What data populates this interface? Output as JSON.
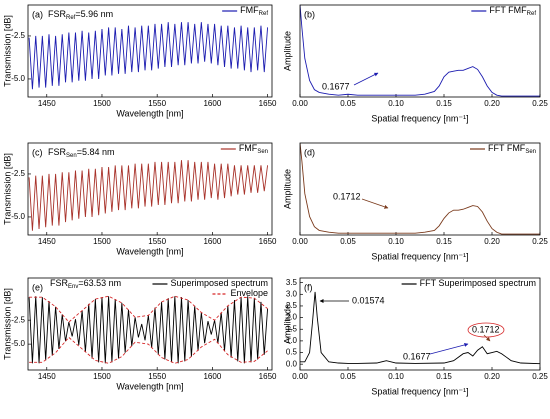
{
  "chart_data": [
    {
      "type": "line",
      "panel": "(a)",
      "label": {
        "main": "FSR",
        "sub": "Ref",
        "rest": "=5.96 nm"
      },
      "xlabel": "Wavelength [nm]",
      "ylabel": "Transmission [dB]",
      "legend": "upper right",
      "x": [
        1434,
        1437,
        1440,
        1443,
        1446,
        1449,
        1452,
        1455,
        1458,
        1461,
        1464,
        1467,
        1470,
        1473,
        1476,
        1479,
        1482,
        1485,
        1488,
        1491,
        1494,
        1497,
        1500,
        1503,
        1506,
        1509,
        1512,
        1515,
        1518,
        1521,
        1524,
        1527,
        1530,
        1533,
        1536,
        1539,
        1542,
        1545,
        1548,
        1551,
        1554,
        1557,
        1560,
        1563,
        1566,
        1569,
        1572,
        1575,
        1578,
        1581,
        1584,
        1587,
        1590,
        1593,
        1596,
        1599,
        1602,
        1605,
        1608,
        1611,
        1614,
        1617,
        1620,
        1623,
        1626,
        1629,
        1632,
        1635,
        1638,
        1641,
        1644,
        1647,
        1650
      ],
      "series": [
        {
          "name": "FMF",
          "name_sub": "Ref",
          "color": "#1c1cb0",
          "values": [
            -2.6,
            -5.6,
            -2.5,
            -5.5,
            -2.5,
            -5.5,
            -2.4,
            -5.4,
            -2.5,
            -5.4,
            -2.4,
            -5.2,
            -2.3,
            -5.2,
            -2.3,
            -5.1,
            -2.2,
            -5.1,
            -2.3,
            -5.0,
            -2.2,
            -5.0,
            -2.1,
            -4.8,
            -2.0,
            -4.8,
            -2.0,
            -4.7,
            -2.1,
            -4.7,
            -1.9,
            -4.6,
            -2.0,
            -4.6,
            -1.9,
            -4.5,
            -1.9,
            -4.5,
            -1.8,
            -4.4,
            -1.8,
            -4.3,
            -1.7,
            -4.3,
            -1.8,
            -4.2,
            -1.7,
            -4.2,
            -1.7,
            -4.1,
            -1.8,
            -4.1,
            -1.7,
            -4.0,
            -1.8,
            -4.1,
            -1.8,
            -4.2,
            -1.9,
            -4.3,
            -1.9,
            -4.4,
            -2.0,
            -4.4,
            -1.9,
            -4.5,
            -2.0,
            -4.6,
            -2.0,
            -4.5,
            -1.9,
            -4.6,
            -2.0
          ]
        }
      ],
      "xlim": [
        1433,
        1654
      ],
      "ylim": [
        -6.05,
        -0.7
      ],
      "xticks": [
        1450,
        1500,
        1550,
        1600,
        1650
      ],
      "yticks": [
        -2.5,
        {
          "value": -5,
          "label": "-5.0"
        }
      ],
      "annotations": []
    },
    {
      "type": "line",
      "panel": "(b)",
      "xlabel": "Spatial frequency [nm⁻¹]",
      "ylabel": "Amplitude",
      "legend": "upper right",
      "x": [
        0,
        0.002,
        0.005,
        0.01,
        0.015,
        0.02,
        0.03,
        0.04,
        0.05,
        0.06,
        0.08,
        0.1,
        0.12,
        0.13,
        0.14,
        0.145,
        0.15,
        0.155,
        0.16,
        0.165,
        0.17,
        0.175,
        0.18,
        0.185,
        0.19,
        0.195,
        0.2,
        0.205,
        0.21,
        0.22,
        0.25
      ],
      "series": [
        {
          "name": "FFT FMF",
          "name_sub": "Ref",
          "color": "#1c1cb0",
          "values": [
            1.0,
            0.75,
            0.42,
            0.18,
            0.08,
            0.05,
            0.03,
            0.02,
            0.03,
            0.02,
            0.02,
            0.02,
            0.02,
            0.03,
            0.06,
            0.12,
            0.22,
            0.27,
            0.28,
            0.29,
            0.29,
            0.31,
            0.33,
            0.3,
            0.22,
            0.12,
            0.05,
            0.02,
            0.01,
            0.01,
            0.01
          ]
        }
      ],
      "xlim": [
        0,
        0.25
      ],
      "ylim": [
        0,
        1
      ],
      "xticks": [
        {
          "value": 0,
          "label": "0.00"
        },
        0.05,
        {
          "value": 0.1,
          "label": "0.10"
        },
        0.15,
        {
          "value": 0.2,
          "label": "0.20"
        },
        0.25
      ],
      "yticks": [],
      "annotations": [
        {
          "text": "0.1677",
          "color": "#1c1cb0"
        }
      ]
    },
    {
      "type": "line",
      "panel": "(c)",
      "label": {
        "main": "FSR",
        "sub": "Sen",
        "rest": "=5.84 nm"
      },
      "xlabel": "Wavelength [nm]",
      "ylabel": "Transmission [dB]",
      "legend": "upper right",
      "x": [
        1434,
        1437,
        1440,
        1443,
        1446,
        1449,
        1452,
        1455,
        1458,
        1461,
        1464,
        1467,
        1470,
        1473,
        1476,
        1479,
        1482,
        1485,
        1488,
        1491,
        1494,
        1497,
        1500,
        1503,
        1506,
        1509,
        1512,
        1515,
        1518,
        1521,
        1524,
        1527,
        1530,
        1533,
        1536,
        1539,
        1542,
        1545,
        1548,
        1551,
        1554,
        1557,
        1560,
        1563,
        1566,
        1569,
        1572,
        1575,
        1578,
        1581,
        1584,
        1587,
        1590,
        1593,
        1596,
        1599,
        1602,
        1605,
        1608,
        1611,
        1614,
        1617,
        1620,
        1623,
        1626,
        1629,
        1632,
        1635,
        1638,
        1641,
        1644,
        1647,
        1650
      ],
      "series": [
        {
          "name": "FMF",
          "name_sub": "Sen",
          "color": "#a8322a",
          "values": [
            -2.7,
            -5.8,
            -2.6,
            -5.7,
            -2.6,
            -5.6,
            -2.5,
            -5.5,
            -2.5,
            -5.5,
            -2.4,
            -5.3,
            -2.4,
            -5.2,
            -2.3,
            -5.1,
            -2.3,
            -5.0,
            -2.2,
            -5.0,
            -2.2,
            -4.9,
            -2.1,
            -4.8,
            -2.1,
            -4.7,
            -2.0,
            -4.6,
            -2.0,
            -4.6,
            -2.0,
            -4.5,
            -1.9,
            -4.5,
            -1.9,
            -4.4,
            -1.9,
            -4.4,
            -1.8,
            -4.3,
            -1.8,
            -4.3,
            -1.8,
            -4.2,
            -1.8,
            -4.2,
            -1.7,
            -4.1,
            -1.7,
            -4.1,
            -1.8,
            -4.0,
            -1.8,
            -4.0,
            -1.8,
            -3.9,
            -1.9,
            -4.0,
            -1.9,
            -3.9,
            -1.9,
            -3.8,
            -2.0,
            -3.7,
            -2.0,
            -3.7,
            -2.0,
            -3.6,
            -2.0,
            -3.6,
            -2.0,
            -3.5,
            -2.0
          ]
        }
      ],
      "xlim": [
        1433,
        1654
      ],
      "ylim": [
        -6.05,
        -0.7
      ],
      "xticks": [
        1450,
        1500,
        1550,
        1600,
        1650
      ],
      "yticks": [
        -2.5,
        {
          "value": -5,
          "label": "-5.0"
        }
      ],
      "annotations": []
    },
    {
      "type": "line",
      "panel": "(d)",
      "xlabel": "Spatial frequency [nm⁻¹]",
      "ylabel": "Amplitude",
      "legend": "upper right",
      "x": [
        0,
        0.002,
        0.005,
        0.01,
        0.015,
        0.02,
        0.03,
        0.04,
        0.05,
        0.06,
        0.08,
        0.1,
        0.12,
        0.13,
        0.14,
        0.145,
        0.15,
        0.155,
        0.16,
        0.165,
        0.17,
        0.175,
        0.18,
        0.185,
        0.19,
        0.195,
        0.2,
        0.205,
        0.21,
        0.22,
        0.25
      ],
      "series": [
        {
          "name": "FFT FMF",
          "name_sub": "Sen",
          "color": "#7a3a1c",
          "values": [
            1.0,
            0.8,
            0.45,
            0.2,
            0.09,
            0.05,
            0.03,
            0.02,
            0.02,
            0.02,
            0.02,
            0.02,
            0.02,
            0.03,
            0.05,
            0.1,
            0.18,
            0.24,
            0.27,
            0.27,
            0.28,
            0.3,
            0.32,
            0.31,
            0.25,
            0.15,
            0.07,
            0.03,
            0.01,
            0.01,
            0.01
          ]
        }
      ],
      "xlim": [
        0,
        0.25
      ],
      "ylim": [
        0,
        1
      ],
      "xticks": [
        {
          "value": 0,
          "label": "0.00"
        },
        0.05,
        {
          "value": 0.1,
          "label": "0.10"
        },
        0.15,
        {
          "value": 0.2,
          "label": "0.20"
        },
        0.25
      ],
      "yticks": [],
      "annotations": [
        {
          "text": "0.1712",
          "color": "#7a3a1c"
        }
      ]
    },
    {
      "type": "line",
      "panel": "(e)",
      "label": {
        "main": "FSR",
        "sub": "Env",
        "rest": "=63.53 nm"
      },
      "xlabel": "Wavelength [nm]",
      "ylabel": "Transmission [dB]",
      "legend": "upper right",
      "x": [
        1434,
        1437,
        1440,
        1443,
        1446,
        1449,
        1452,
        1455,
        1458,
        1461,
        1464,
        1467,
        1470,
        1473,
        1476,
        1479,
        1482,
        1485,
        1488,
        1491,
        1494,
        1497,
        1500,
        1503,
        1506,
        1509,
        1512,
        1515,
        1518,
        1521,
        1524,
        1527,
        1530,
        1533,
        1536,
        1539,
        1542,
        1545,
        1548,
        1551,
        1554,
        1557,
        1560,
        1563,
        1566,
        1569,
        1572,
        1575,
        1578,
        1581,
        1584,
        1587,
        1590,
        1593,
        1596,
        1599,
        1602,
        1605,
        1608,
        1611,
        1614,
        1617,
        1620,
        1623,
        1626,
        1629,
        1632,
        1635,
        1638,
        1641,
        1644,
        1647,
        1650
      ],
      "series": [
        {
          "name": "Superimposed spectrum",
          "color": "#000000",
          "values": [
            -0.1,
            -7.0,
            0.0,
            -7.0,
            -0.1,
            -6.7,
            -0.5,
            -6.2,
            -1.1,
            -5.5,
            -1.9,
            -4.7,
            -2.7,
            -4.2,
            -2.4,
            -5.1,
            -1.5,
            -5.8,
            -0.8,
            -6.5,
            -0.3,
            -6.9,
            -0.1,
            -7.0,
            0.0,
            -6.9,
            -0.3,
            -6.5,
            -0.7,
            -5.9,
            -1.4,
            -5.2,
            -2.2,
            -4.3,
            -2.9,
            -4.6,
            -2.0,
            -5.4,
            -1.2,
            -6.1,
            -0.6,
            -6.6,
            -0.2,
            -6.9,
            0.0,
            -7.0,
            -0.1,
            -6.8,
            -0.4,
            -6.3,
            -1.0,
            -5.7,
            -1.7,
            -4.9,
            -2.6,
            -4.0,
            -2.5,
            -4.9,
            -1.7,
            -5.7,
            -1.0,
            -6.4,
            -0.4,
            -6.8,
            -0.1,
            -7.0,
            0.0,
            -6.9,
            -0.2,
            -6.6,
            -0.6,
            -6.1,
            -1.3
          ]
        },
        {
          "name": "Envelope",
          "color": "#d62728",
          "x": [
            1434,
            1446,
            1458,
            1470,
            1482,
            1494,
            1506,
            1518,
            1530,
            1542,
            1554,
            1566,
            1578,
            1590,
            1602,
            1614,
            1626,
            1638,
            1650
          ],
          "values": [
            -0.1,
            -0.1,
            -1.1,
            -2.7,
            -1.5,
            -0.3,
            0.0,
            -0.7,
            -2.2,
            -2.0,
            -0.6,
            0.0,
            -0.4,
            -1.7,
            -2.5,
            -1.0,
            -0.1,
            -0.2,
            -1.3
          ],
          "values_lower": [
            -6.9,
            -6.9,
            -5.9,
            -4.3,
            -5.5,
            -6.7,
            -7.0,
            -6.3,
            -4.8,
            -5.0,
            -6.4,
            -7.0,
            -6.6,
            -5.3,
            -4.5,
            -6.1,
            -6.9,
            -6.8,
            -5.7
          ]
        }
      ],
      "xlim": [
        1433,
        1654
      ],
      "ylim": [
        -7.7,
        1.9
      ],
      "xticks": [
        1450,
        1500,
        1550,
        1600,
        1650
      ],
      "yticks": [
        -2.5,
        {
          "value": -5,
          "label": "-5.0"
        }
      ],
      "annotations": []
    },
    {
      "type": "line",
      "panel": "(f)",
      "xlabel": "Spatial frequency [nm⁻¹]",
      "ylabel": "Amplitude",
      "legend": "upper right",
      "x": [
        0,
        0.005,
        0.01,
        0.013,
        0.0157,
        0.018,
        0.022,
        0.03,
        0.04,
        0.05,
        0.06,
        0.08,
        0.09,
        0.1,
        0.12,
        0.15,
        0.16,
        0.17,
        0.175,
        0.18,
        0.185,
        0.19,
        0.195,
        0.2,
        0.205,
        0.21,
        0.215,
        0.22,
        0.23,
        0.25
      ],
      "series": [
        {
          "name": "FFT Superimposed spectrum",
          "color": "#000000",
          "values": [
            0.1,
            0.1,
            0.5,
            1.8,
            3.1,
            2.0,
            0.5,
            0.1,
            0.05,
            0.03,
            0.03,
            0.05,
            0.15,
            0.05,
            0.03,
            0.05,
            0.15,
            0.45,
            0.5,
            0.35,
            0.6,
            0.75,
            0.45,
            0.5,
            0.55,
            0.45,
            0.3,
            0.15,
            0.05,
            0.02
          ]
        }
      ],
      "xlim": [
        0,
        0.25
      ],
      "ylim": [
        -0.25,
        3.7
      ],
      "xticks": [
        {
          "value": 0,
          "label": "0.00"
        },
        0.05,
        {
          "value": 0.1,
          "label": "0.10"
        },
        0.15,
        {
          "value": 0.2,
          "label": "0.20"
        },
        0.25
      ],
      "yticks": [
        {
          "value": 0,
          "label": "0.0"
        },
        0.5,
        {
          "value": 1,
          "label": "1.0"
        },
        1.5,
        {
          "value": 2,
          "label": "2.0"
        },
        2.5,
        {
          "value": 3,
          "label": "3.0"
        },
        3.5
      ],
      "annotations": [
        {
          "text": "0.01574",
          "color": "#000000"
        },
        {
          "text": "0.1677",
          "color": "#1c1cb0"
        },
        {
          "text": "0.1712",
          "color": "#7a3a1c"
        }
      ]
    }
  ]
}
